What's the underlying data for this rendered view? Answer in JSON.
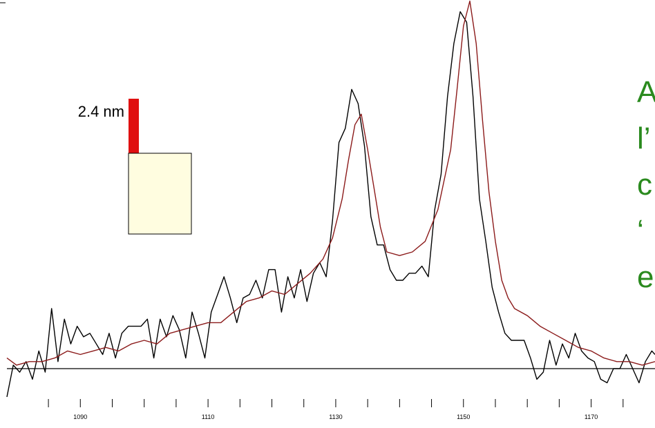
{
  "colors": {
    "measured": "#000000",
    "fitted": "#8b1a1a",
    "bar": "#e01010",
    "block": "#fffde0",
    "side_text": "#2a8a1e"
  },
  "inset": {
    "label": "2.4 nm"
  },
  "side_text": [
    "A",
    "l’",
    "c",
    "‘",
    "e"
  ],
  "chart_data": {
    "type": "line",
    "xlim": [
      1078.5,
      1180
    ],
    "ylim": [
      -0.1,
      1.05
    ],
    "baseline": 0,
    "xticks": [
      1085,
      1090,
      1095,
      1100,
      1105,
      1110,
      1115,
      1120,
      1125,
      1130,
      1135,
      1140,
      1145,
      1150,
      1155,
      1160,
      1165,
      1170,
      1175
    ],
    "xtick_labels": [
      {
        "x": 1090,
        "label": "1090"
      },
      {
        "x": 1110,
        "label": "1110"
      },
      {
        "x": 1130,
        "label": "1130"
      },
      {
        "x": 1150,
        "label": "1150"
      },
      {
        "x": 1170,
        "label": "1170"
      }
    ],
    "series": [
      {
        "color": "measured",
        "x": [
          1078.5,
          1079.5,
          1080.5,
          1081.5,
          1082.5,
          1083.5,
          1084.5,
          1085.5,
          1086.5,
          1087.5,
          1088.5,
          1089.5,
          1090.5,
          1091.5,
          1092.5,
          1093.5,
          1094.5,
          1095.5,
          1096.5,
          1097.5,
          1098.5,
          1099.5,
          1100.5,
          1101.5,
          1102.5,
          1103.5,
          1104.5,
          1105.5,
          1106.5,
          1107.5,
          1108.5,
          1109.5,
          1110.5,
          1111.5,
          1112.5,
          1113.5,
          1114.5,
          1115.5,
          1116.5,
          1117.5,
          1118.5,
          1119.5,
          1120.5,
          1121.5,
          1122.5,
          1123.5,
          1124.5,
          1125.5,
          1126.5,
          1127.5,
          1128.5,
          1129.5,
          1130.5,
          1131.5,
          1132.5,
          1133.5,
          1134.5,
          1135.5,
          1136.5,
          1137.5,
          1138.5,
          1139.5,
          1140.5,
          1141.5,
          1142.5,
          1143.5,
          1144.5,
          1145.5,
          1146.5,
          1147.5,
          1148.5,
          1149.5,
          1150.5,
          1151.5,
          1152.5,
          1153.5,
          1154.5,
          1155.5,
          1156.5,
          1157.5,
          1158.5,
          1159.5,
          1160.5,
          1161.5,
          1162.5,
          1163.5,
          1164.5,
          1165.5,
          1166.5,
          1167.5,
          1168.5,
          1169.5,
          1170.5,
          1171.5,
          1172.5,
          1173.5,
          1174.5,
          1175.5,
          1176.5,
          1177.5,
          1178.5,
          1179.5,
          1180
        ],
        "y": [
          -0.08,
          0.01,
          -0.01,
          0.02,
          -0.03,
          0.05,
          -0.01,
          0.17,
          0.02,
          0.14,
          0.07,
          0.12,
          0.09,
          0.1,
          0.07,
          0.04,
          0.1,
          0.03,
          0.1,
          0.12,
          0.12,
          0.12,
          0.14,
          0.03,
          0.14,
          0.09,
          0.15,
          0.11,
          0.03,
          0.16,
          0.1,
          0.03,
          0.16,
          0.21,
          0.26,
          0.2,
          0.13,
          0.2,
          0.21,
          0.25,
          0.2,
          0.28,
          0.28,
          0.16,
          0.26,
          0.2,
          0.28,
          0.19,
          0.27,
          0.3,
          0.26,
          0.42,
          0.64,
          0.68,
          0.79,
          0.75,
          0.63,
          0.43,
          0.35,
          0.35,
          0.28,
          0.25,
          0.25,
          0.27,
          0.27,
          0.29,
          0.26,
          0.45,
          0.55,
          0.77,
          0.92,
          1.01,
          0.98,
          0.77,
          0.48,
          0.36,
          0.23,
          0.16,
          0.1,
          0.08,
          0.08,
          0.08,
          0.03,
          -0.03,
          -0.01,
          0.08,
          0.01,
          0.07,
          0.03,
          0.1,
          0.05,
          0.03,
          0.02,
          -0.03,
          -0.04,
          0.0,
          0.0,
          0.04,
          0.0,
          -0.04,
          0.02,
          0.05,
          0.04
        ]
      },
      {
        "color": "fitted",
        "x": [
          1078.5,
          1080,
          1082,
          1084,
          1086,
          1088,
          1090,
          1092,
          1094,
          1096,
          1098,
          1100,
          1102,
          1104,
          1106,
          1108,
          1110,
          1112,
          1114,
          1116,
          1118,
          1120,
          1122,
          1124,
          1126,
          1128,
          1129.5,
          1131,
          1132,
          1133,
          1134,
          1135,
          1136,
          1137,
          1138,
          1140,
          1142,
          1144,
          1146,
          1148,
          1149,
          1150,
          1151,
          1152,
          1153,
          1154,
          1155,
          1156,
          1157,
          1158,
          1160,
          1162,
          1164,
          1166,
          1168,
          1170,
          1172,
          1174,
          1176,
          1178,
          1180
        ],
        "y": [
          0.03,
          0.01,
          0.02,
          0.02,
          0.03,
          0.05,
          0.04,
          0.05,
          0.06,
          0.05,
          0.07,
          0.08,
          0.07,
          0.1,
          0.11,
          0.12,
          0.13,
          0.13,
          0.16,
          0.19,
          0.2,
          0.22,
          0.21,
          0.24,
          0.27,
          0.31,
          0.37,
          0.48,
          0.59,
          0.69,
          0.72,
          0.62,
          0.51,
          0.4,
          0.33,
          0.32,
          0.33,
          0.36,
          0.45,
          0.62,
          0.79,
          0.97,
          1.04,
          0.92,
          0.7,
          0.5,
          0.36,
          0.25,
          0.2,
          0.17,
          0.15,
          0.12,
          0.1,
          0.08,
          0.06,
          0.05,
          0.03,
          0.02,
          0.02,
          0.01,
          0.02
        ]
      }
    ]
  }
}
